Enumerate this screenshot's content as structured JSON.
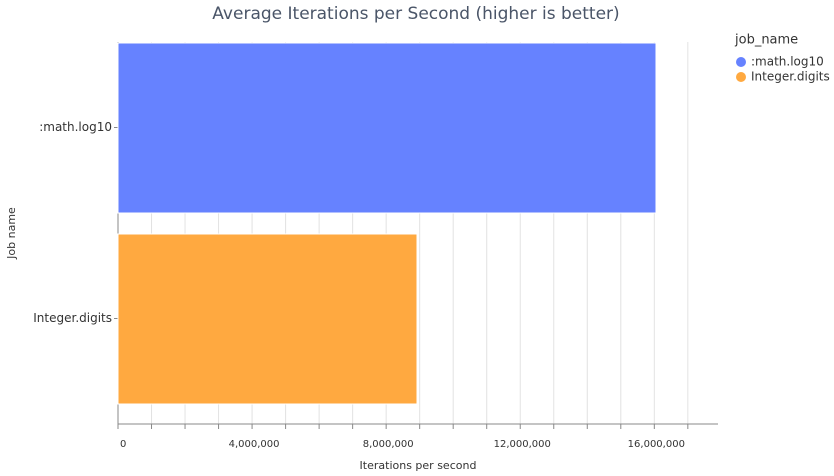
{
  "chart_data": {
    "type": "bar",
    "orientation": "horizontal",
    "title": "Average Iterations per Second (higher is better)",
    "x_label": "Iterations per second",
    "y_label": "Job name",
    "legend_title": "job_name",
    "categories": [
      ":math.log10",
      "Integer.digits"
    ],
    "series": [
      {
        "name": ":math.log10",
        "color": "#6682ff",
        "values": [
          16050000,
          null
        ]
      },
      {
        "name": "Integer.digits",
        "color": "#ffa940",
        "values": [
          null,
          8920000
        ]
      }
    ],
    "xlim": [
      0,
      17900000
    ],
    "xticks": [
      0,
      {
        "value": 4000000,
        "label": "4,000,000"
      },
      {
        "value": 8000000,
        "label": "8,000,000"
      },
      {
        "value": 12000000,
        "label": "12,000,000"
      },
      {
        "value": 16000000,
        "label": "16,000,000"
      }
    ],
    "minor_xticks": [
      1000000,
      2000000,
      3000000,
      5000000,
      6000000,
      7000000,
      9000000,
      10000000,
      11000000,
      13000000,
      14000000,
      15000000,
      17000000
    ],
    "grid": true,
    "legend": "right"
  }
}
